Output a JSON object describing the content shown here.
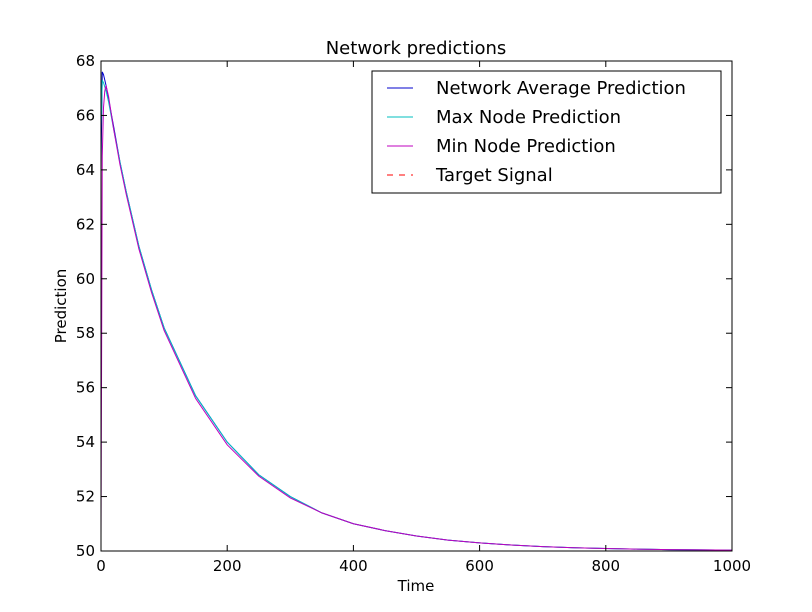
{
  "chart_data": {
    "type": "line",
    "title": "Network predictions",
    "xlabel": "Time",
    "ylabel": "Prediction",
    "xlim": [
      0,
      1000
    ],
    "ylim": [
      50,
      68
    ],
    "xticks": [
      "0",
      "200",
      "400",
      "600",
      "800",
      "1000"
    ],
    "yticks": [
      "50",
      "52",
      "54",
      "56",
      "58",
      "60",
      "62",
      "64",
      "66",
      "68"
    ],
    "grid": false,
    "legend_position": "top-right",
    "series": [
      {
        "name": "Network Average Prediction",
        "color": "#0000cc",
        "style": "solid",
        "x": [
          0,
          2,
          4,
          8,
          12,
          20,
          30,
          40,
          60,
          80,
          100,
          150,
          200,
          250,
          300,
          350,
          400,
          450,
          500,
          550,
          600,
          650,
          700,
          750,
          800,
          850,
          900,
          950,
          1000
        ],
        "y": [
          64.0,
          67.6,
          67.5,
          67.1,
          66.6,
          65.6,
          64.3,
          63.2,
          61.2,
          59.6,
          58.2,
          55.7,
          54.0,
          52.8,
          52.0,
          51.4,
          51.0,
          50.75,
          50.55,
          50.4,
          50.3,
          50.22,
          50.16,
          50.12,
          50.09,
          50.07,
          50.05,
          50.04,
          50.03
        ]
      },
      {
        "name": "Max Node Prediction",
        "color": "#00bfbf",
        "style": "solid",
        "x": [
          0,
          2,
          4,
          8,
          12,
          20,
          30,
          40,
          60,
          80,
          100,
          150,
          200,
          250,
          300,
          350,
          400,
          450,
          500,
          550,
          600,
          650,
          700,
          750,
          800,
          850,
          900,
          950,
          1000
        ],
        "y": [
          65.5,
          67.3,
          67.2,
          66.9,
          66.5,
          65.5,
          64.3,
          63.2,
          61.2,
          59.6,
          58.2,
          55.7,
          54.0,
          52.8,
          52.0,
          51.4,
          51.0,
          50.75,
          50.55,
          50.4,
          50.3,
          50.22,
          50.16,
          50.12,
          50.09,
          50.07,
          50.05,
          50.04,
          50.03
        ]
      },
      {
        "name": "Min Node Prediction",
        "color": "#bf00bf",
        "style": "solid",
        "x": [
          0,
          2,
          4,
          6,
          8,
          12,
          20,
          30,
          40,
          60,
          80,
          100,
          150,
          200,
          250,
          300,
          350,
          400,
          450,
          500,
          550,
          600,
          650,
          700,
          750,
          800,
          850,
          900,
          950,
          1000
        ],
        "y": [
          50.5,
          64.5,
          66.3,
          66.9,
          67.1,
          66.7,
          65.5,
          64.2,
          63.1,
          61.1,
          59.5,
          58.1,
          55.6,
          53.9,
          52.75,
          51.95,
          51.4,
          51.0,
          50.75,
          50.55,
          50.4,
          50.3,
          50.22,
          50.16,
          50.12,
          50.09,
          50.07,
          50.05,
          50.04,
          50.03
        ]
      },
      {
        "name": "Target Signal",
        "color": "#ff0000",
        "style": "dashed",
        "x": [
          0,
          1000
        ],
        "y": [
          50.0,
          50.0
        ]
      }
    ]
  }
}
